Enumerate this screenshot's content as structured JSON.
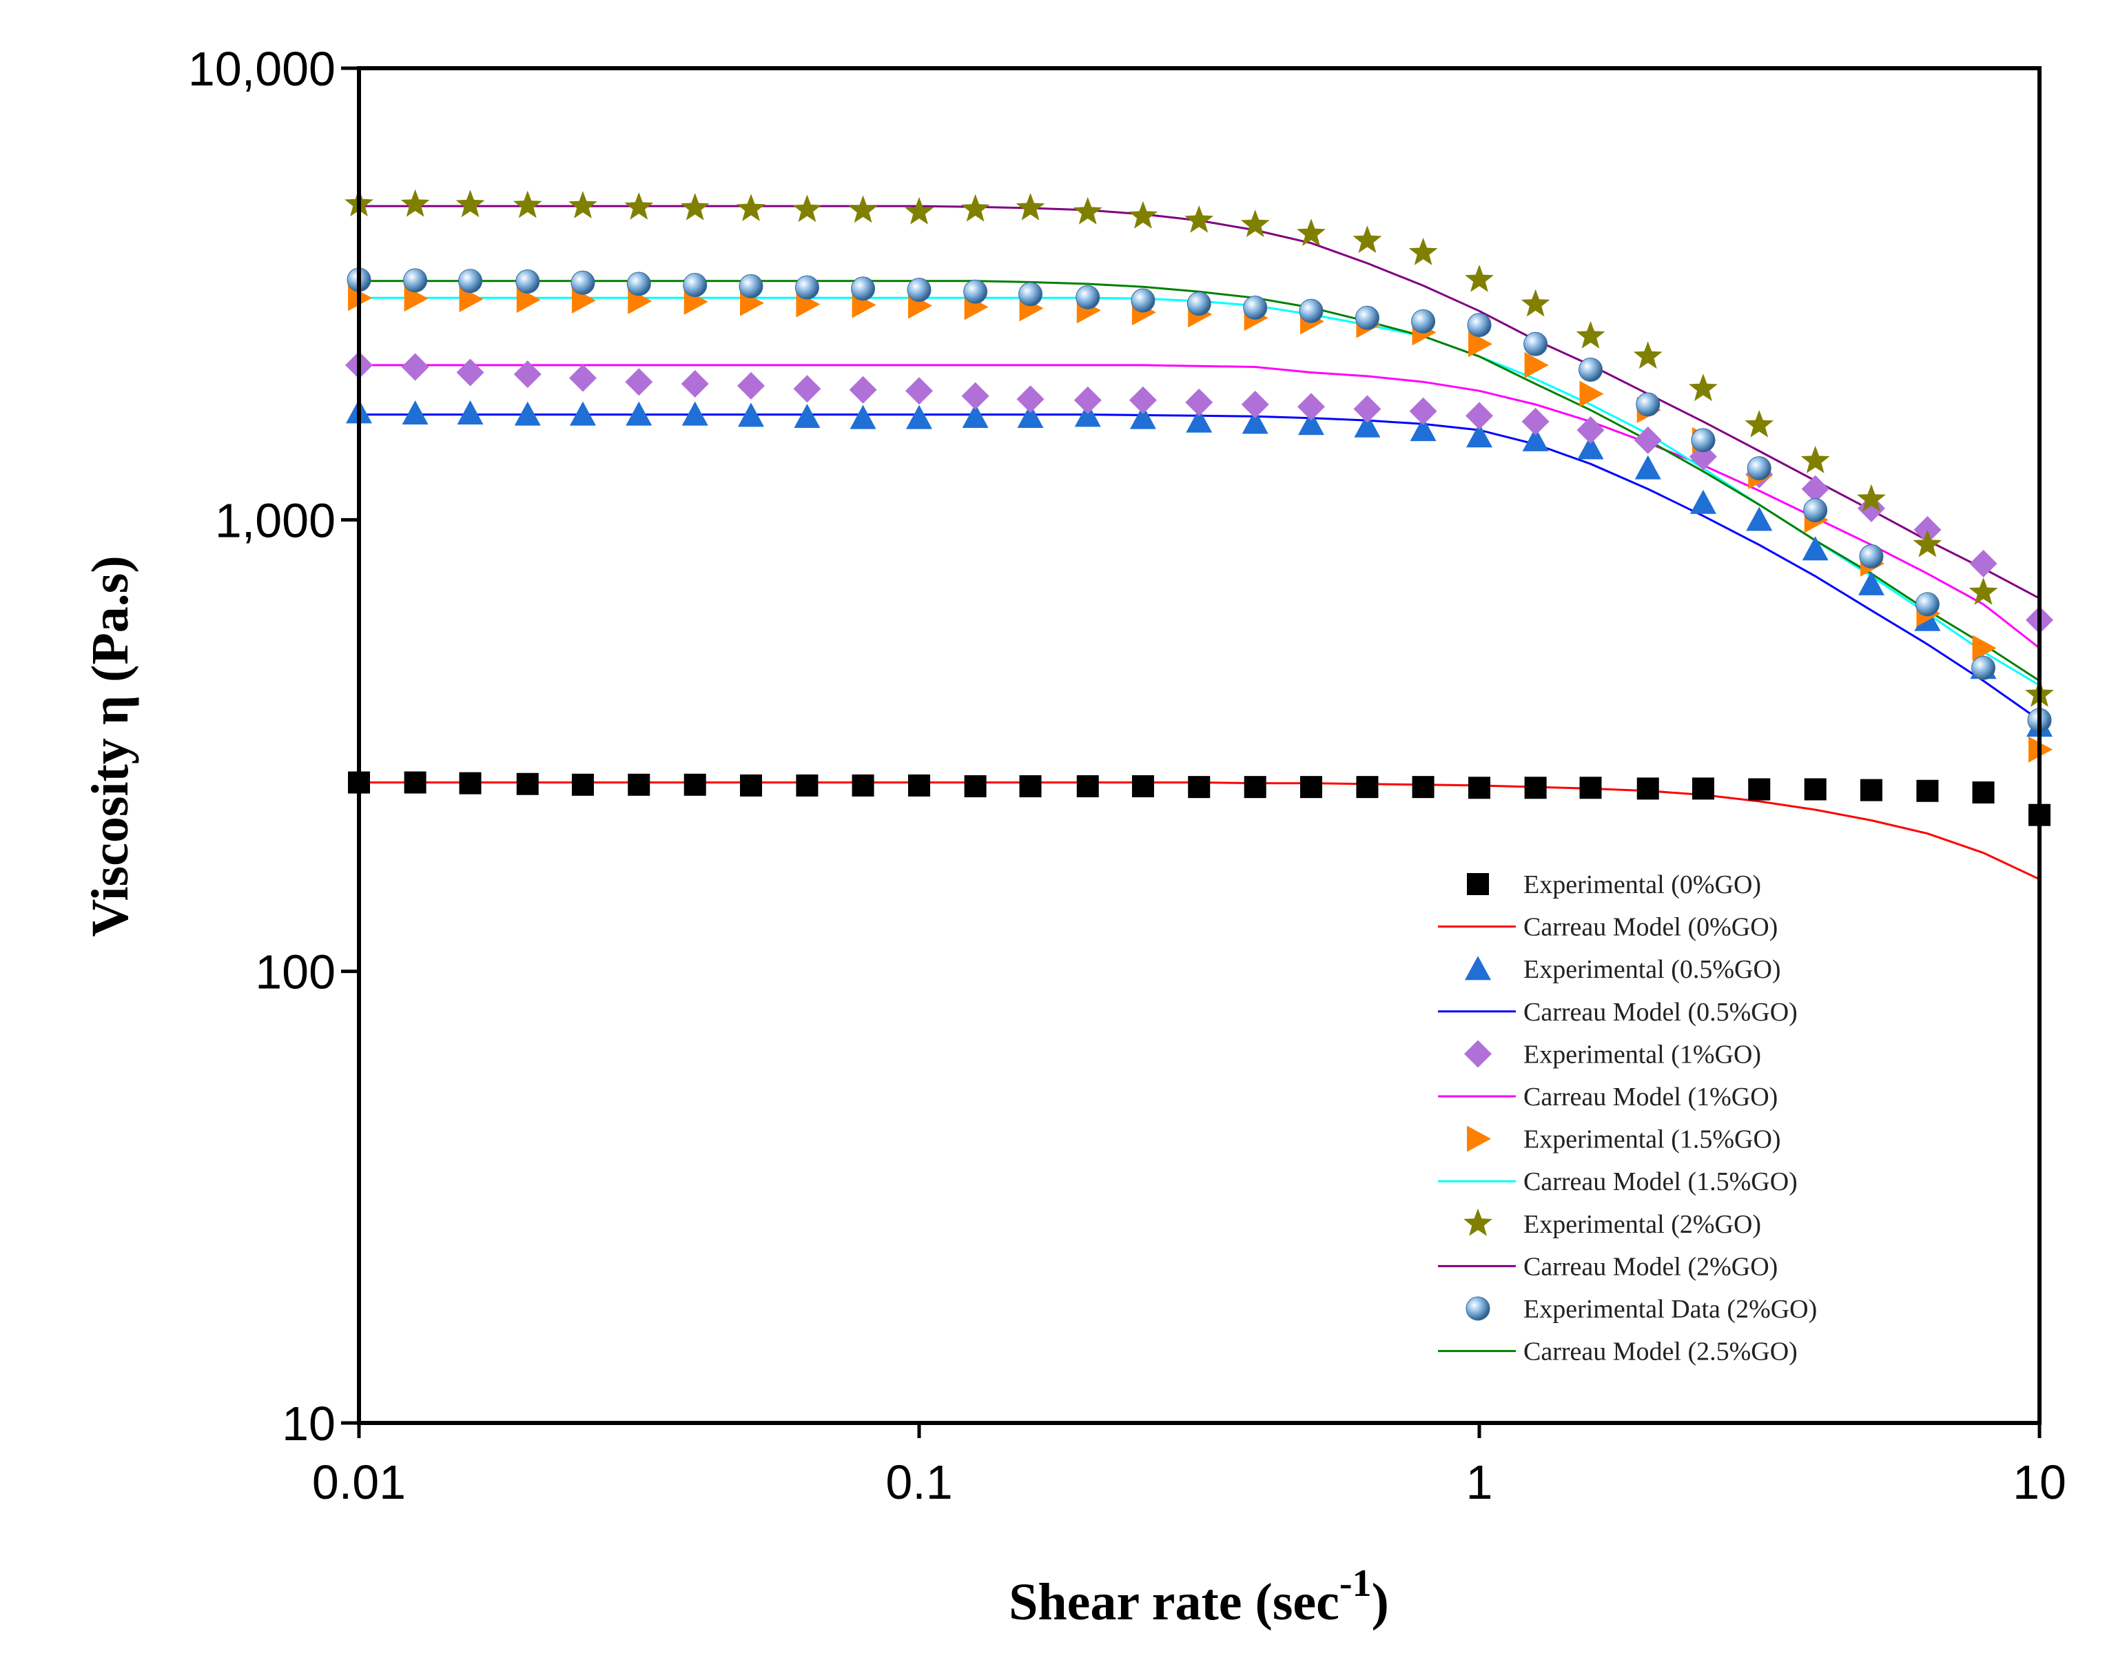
{
  "chart_data": {
    "type": "scatter-line",
    "x_label": {
      "text": "Shear rate (sec",
      "superscript": "-1",
      "suffix": ")"
    },
    "y_label": "Viscosity η (Pa.s)",
    "log_x": true,
    "log_y": true,
    "xlim": [
      0.01,
      10
    ],
    "ylim": [
      10,
      10000
    ],
    "xticks": [
      0.01,
      0.1,
      1,
      10
    ],
    "yticks": [
      10,
      100,
      {
        "value": 1000,
        "label": "1,000"
      },
      {
        "value": 10000,
        "label": "10,000"
      }
    ],
    "legend": "lower-right",
    "x": [
      0.01,
      0.0126,
      0.0158,
      0.02,
      0.0251,
      0.0316,
      0.0398,
      0.0501,
      0.0631,
      0.0794,
      0.1,
      0.126,
      0.158,
      0.2,
      0.251,
      0.316,
      0.398,
      0.501,
      0.631,
      0.794,
      1,
      1.26,
      1.58,
      2,
      2.51,
      3.16,
      3.98,
      5.01,
      6.31,
      7.94,
      10
    ],
    "series": [
      {
        "name": "Experimental (0%GO)",
        "color": "#000000",
        "marker": "square",
        "values": [
          262,
          262,
          261,
          260,
          259,
          259,
          259,
          258,
          258,
          258,
          258,
          257,
          257,
          257,
          257,
          256,
          256,
          256,
          256,
          256,
          255,
          255,
          255,
          254,
          254,
          253,
          253,
          252,
          251,
          249,
          222
        ]
      },
      {
        "name": "Carreau Model (0%GO)",
        "color": "#ff0000",
        "marker": "line",
        "values": [
          262,
          262,
          262,
          262,
          262,
          262,
          262,
          262,
          262,
          262,
          262,
          262,
          262,
          262,
          262,
          262,
          261,
          261,
          260,
          259,
          258,
          256,
          254,
          251,
          246,
          238,
          228,
          216,
          202,
          183,
          160
        ]
      },
      {
        "name": "Experimental  (0.5%GO)",
        "color": "#1f6fd6",
        "marker": "triangle",
        "values": [
          1730,
          1720,
          1720,
          1710,
          1710,
          1710,
          1710,
          1700,
          1690,
          1680,
          1680,
          1690,
          1690,
          1700,
          1680,
          1650,
          1640,
          1630,
          1610,
          1580,
          1530,
          1500,
          1440,
          1300,
          1090,
          1000,
          860,
          720,
          600,
          470,
          350
        ]
      },
      {
        "name": "Carreau Model (0.5%GO)",
        "color": "#0000ff",
        "marker": "line",
        "values": [
          1710,
          1710,
          1710,
          1710,
          1710,
          1710,
          1710,
          1710,
          1710,
          1710,
          1710,
          1710,
          1710,
          1710,
          1705,
          1700,
          1695,
          1680,
          1660,
          1630,
          1580,
          1470,
          1330,
          1170,
          1020,
          880,
          750,
          630,
          530,
          440,
          360
        ]
      },
      {
        "name": "Experimental  (1%GO)",
        "color": "#b070d8",
        "marker": "diamond",
        "values": [
          2200,
          2180,
          2120,
          2100,
          2060,
          2020,
          2000,
          1980,
          1950,
          1940,
          1930,
          1880,
          1850,
          1840,
          1840,
          1820,
          1800,
          1780,
          1760,
          1740,
          1700,
          1650,
          1580,
          1500,
          1380,
          1260,
          1170,
          1060,
          950,
          800,
          600
        ]
      },
      {
        "name": "Carreau Model (1%GO)",
        "color": "#ff00ff",
        "marker": "line",
        "values": [
          2200,
          2200,
          2200,
          2200,
          2200,
          2200,
          2200,
          2200,
          2200,
          2200,
          2200,
          2200,
          2200,
          2200,
          2200,
          2190,
          2180,
          2120,
          2080,
          2020,
          1930,
          1800,
          1650,
          1480,
          1320,
          1160,
          1010,
          880,
          760,
          650,
          520
        ]
      },
      {
        "name": "Experimental  (1.5%GO)",
        "color": "#ff8000",
        "marker": "triangle-right",
        "values": [
          3100,
          3090,
          3080,
          3070,
          3060,
          3050,
          3040,
          3020,
          3000,
          2990,
          2980,
          2960,
          2940,
          2910,
          2880,
          2850,
          2800,
          2750,
          2700,
          2600,
          2450,
          2200,
          1900,
          1750,
          1500,
          1250,
          1000,
          800,
          620,
          520,
          310
        ]
      },
      {
        "name": "Carreau Model (1.5%GO)",
        "color": "#00ffff",
        "marker": "line",
        "values": [
          3100,
          3100,
          3100,
          3100,
          3100,
          3100,
          3100,
          3100,
          3100,
          3100,
          3100,
          3100,
          3100,
          3100,
          3090,
          3050,
          2980,
          2850,
          2700,
          2550,
          2300,
          2050,
          1800,
          1550,
          1300,
          1080,
          900,
          750,
          620,
          510,
          430
        ]
      },
      {
        "name": "Experimental  (2%GO)",
        "color": "#808000",
        "marker": "star",
        "values": [
          5000,
          4990,
          4980,
          4960,
          4950,
          4920,
          4900,
          4880,
          4860,
          4840,
          4800,
          4870,
          4900,
          4800,
          4700,
          4600,
          4500,
          4300,
          4150,
          3900,
          3400,
          3000,
          2550,
          2300,
          1950,
          1620,
          1350,
          1110,
          880,
          690,
          410
        ]
      },
      {
        "name": "Carreau Model (2%GO)",
        "color": "#800080",
        "marker": "line",
        "values": [
          4950,
          4950,
          4950,
          4950,
          4950,
          4950,
          4950,
          4950,
          4950,
          4950,
          4950,
          4930,
          4900,
          4850,
          4750,
          4600,
          4380,
          4100,
          3700,
          3300,
          2900,
          2500,
          2200,
          1900,
          1650,
          1420,
          1220,
          1050,
          900,
          780,
          670
        ]
      },
      {
        "name": "Experimental Data (2%GO)",
        "color": "#6fa8dc",
        "marker": "sphere",
        "values": [
          3400,
          3390,
          3380,
          3370,
          3350,
          3330,
          3310,
          3290,
          3270,
          3250,
          3230,
          3200,
          3160,
          3110,
          3060,
          3010,
          2950,
          2900,
          2800,
          2750,
          2700,
          2450,
          2150,
          1800,
          1500,
          1300,
          1050,
          830,
          650,
          470,
          360
        ]
      },
      {
        "name": "Carreau Model (2.5%GO)",
        "color": "#008000",
        "marker": "line",
        "values": [
          3380,
          3380,
          3380,
          3380,
          3380,
          3380,
          3380,
          3380,
          3380,
          3380,
          3380,
          3380,
          3360,
          3330,
          3280,
          3200,
          3100,
          2950,
          2750,
          2550,
          2300,
          2000,
          1750,
          1500,
          1280,
          1080,
          900,
          760,
          630,
          530,
          440
        ]
      }
    ]
  }
}
